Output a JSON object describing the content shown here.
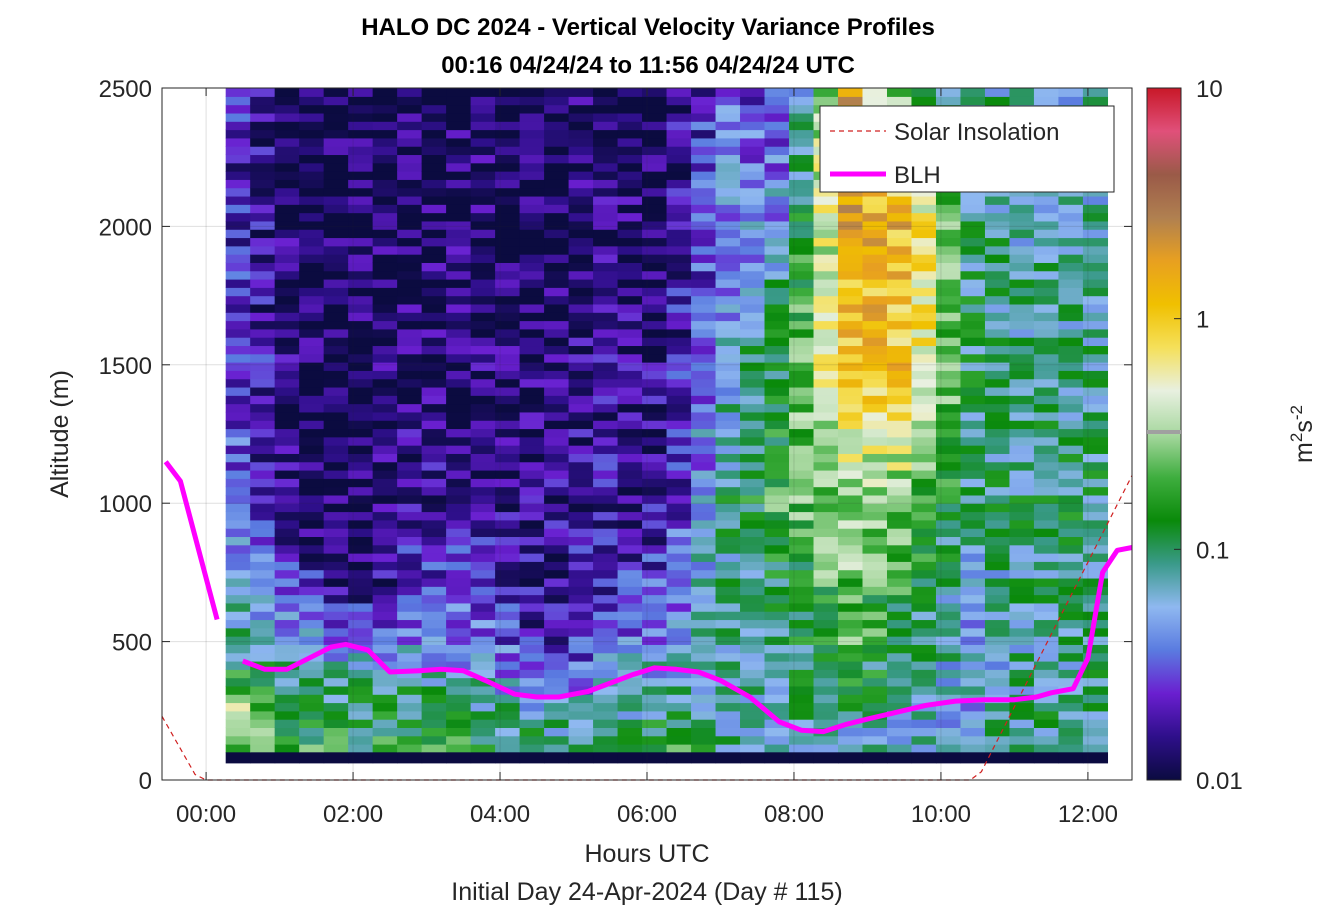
{
  "chart_data": {
    "type": "heatmap",
    "title": "HALO DC 2024 - Vertical Velocity Variance Profiles",
    "subtitle": "00:16 04/24/24 to 11:56 04/24/24  UTC",
    "xlabel": "Hours UTC",
    "xlabel2": "Initial Day 24-Apr-2024 (Day # 115)",
    "ylabel": "Altitude (m)",
    "xlim": [
      -0.6,
      12.6
    ],
    "ylim": [
      0,
      2500
    ],
    "x_ticks": [
      0,
      2,
      4,
      6,
      8,
      10,
      12
    ],
    "x_tick_labels": [
      "00:00",
      "02:00",
      "04:00",
      "06:00",
      "08:00",
      "10:00",
      "12:00"
    ],
    "y_ticks": [
      0,
      500,
      1000,
      1500,
      2000,
      2500
    ],
    "y_tick_labels": [
      "0",
      "500",
      "1000",
      "1500",
      "2000",
      "2500"
    ],
    "grid": true,
    "colorbar": {
      "label": "m²s⁻²",
      "scale": "log",
      "range": [
        0.01,
        10
      ],
      "ticks": [
        0.01,
        0.1,
        1,
        10
      ],
      "tick_labels": [
        "0.01",
        "0.1",
        "1",
        "10"
      ],
      "colors": [
        "#0b0b40",
        "#2e0f8a",
        "#6a1fd0",
        "#5a7be0",
        "#8fb8f0",
        "#3a9a8a",
        "#0a8a0a",
        "#3fae3f",
        "#a8d8a0",
        "#e8f0e0",
        "#f5e05a",
        "#f0c000",
        "#e8a020",
        "#b08050",
        "#9a5a48",
        "#e0507a",
        "#c81828"
      ]
    },
    "heatmap": {
      "time_start": 0.2667,
      "time_end": 11.9333,
      "time_step": 0.3333,
      "alt_bottom": 100,
      "alt_step": 30,
      "log10_variance_by_column": [
        {
          "time": 0.42,
          "profile": [
            [
              0,
              -0.8
            ],
            [
              250,
              -0.4
            ],
            [
              500,
              -1.1
            ],
            [
              1000,
              -1.5
            ],
            [
              1500,
              -1.6
            ],
            [
              2500,
              -1.7
            ]
          ]
        },
        {
          "time": 1.25,
          "profile": [
            [
              0,
              -0.6
            ],
            [
              250,
              -0.9
            ],
            [
              500,
              -1.3
            ],
            [
              900,
              -1.9
            ],
            [
              2500,
              -1.95
            ]
          ]
        },
        {
          "time": 2.08,
          "profile": [
            [
              0,
              -0.8
            ],
            [
              300,
              -1.0
            ],
            [
              500,
              -1.4
            ],
            [
              700,
              -1.9
            ],
            [
              2500,
              -1.95
            ]
          ]
        },
        {
          "time": 2.92,
          "profile": [
            [
              0,
              -0.6
            ],
            [
              300,
              -1.0
            ],
            [
              500,
              -1.4
            ],
            [
              1000,
              -1.8
            ],
            [
              2500,
              -1.95
            ]
          ]
        },
        {
          "time": 3.75,
          "profile": [
            [
              0,
              -0.7
            ],
            [
              300,
              -1.1
            ],
            [
              600,
              -1.5
            ],
            [
              1000,
              -1.85
            ],
            [
              2500,
              -1.9
            ]
          ]
        },
        {
          "time": 4.58,
          "profile": [
            [
              0,
              -0.8
            ],
            [
              300,
              -1.3
            ],
            [
              500,
              -1.8
            ],
            [
              2500,
              -1.95
            ]
          ]
        },
        {
          "time": 5.42,
          "profile": [
            [
              0,
              -0.8
            ],
            [
              300,
              -1.3
            ],
            [
              700,
              -1.7
            ],
            [
              2500,
              -1.9
            ]
          ]
        },
        {
          "time": 6.25,
          "profile": [
            [
              0,
              -0.6
            ],
            [
              300,
              -1.1
            ],
            [
              700,
              -1.5
            ],
            [
              1000,
              -1.8
            ],
            [
              2500,
              -1.9
            ]
          ]
        },
        {
          "time": 7.08,
          "profile": [
            [
              0,
              -1.0
            ],
            [
              500,
              -1.2
            ],
            [
              1000,
              -1.0
            ],
            [
              1500,
              -1.3
            ],
            [
              2500,
              -1.5
            ]
          ]
        },
        {
          "time": 7.92,
          "profile": [
            [
              0,
              -1.2
            ],
            [
              500,
              -1.0
            ],
            [
              1000,
              -0.7
            ],
            [
              1500,
              -0.8
            ],
            [
              2500,
              -1.7
            ]
          ]
        },
        {
          "time": 8.75,
          "profile": [
            [
              0,
              -1.4
            ],
            [
              500,
              -0.7
            ],
            [
              1000,
              -0.5
            ],
            [
              1500,
              0.0
            ],
            [
              2000,
              0.2
            ],
            [
              2500,
              0.3
            ]
          ]
        },
        {
          "time": 9.58,
          "profile": [
            [
              0,
              -1.3
            ],
            [
              500,
              -1.0
            ],
            [
              1000,
              -0.6
            ],
            [
              1500,
              0.0
            ],
            [
              2000,
              0.1
            ],
            [
              2500,
              -0.8
            ]
          ]
        },
        {
          "time": 10.42,
          "profile": [
            [
              0,
              -1.2
            ],
            [
              500,
              -1.3
            ],
            [
              1000,
              -1.1
            ],
            [
              1500,
              -1.0
            ],
            [
              2500,
              -1.1
            ]
          ]
        },
        {
          "time": 11.25,
          "profile": [
            [
              0,
              -1.0
            ],
            [
              500,
              -1.1
            ],
            [
              1000,
              -1.0
            ],
            [
              1500,
              -1.1
            ],
            [
              2500,
              -1.2
            ]
          ]
        }
      ]
    },
    "series": [
      {
        "name": "Solar Insolation",
        "style": "dashed",
        "color": "#d02020",
        "x": [
          -0.6,
          -0.15,
          0.0,
          10.4,
          10.55,
          12.6
        ],
        "y": [
          230,
          20,
          0,
          0,
          30,
          1100
        ]
      },
      {
        "name": "BLH",
        "style": "solid",
        "color": "#ff00ff",
        "segments": [
          {
            "x": [
              -0.55,
              -0.35,
              0.15
            ],
            "y": [
              1150,
              1080,
              580
            ]
          },
          {
            "x": [
              0.5,
              0.8,
              1.1,
              1.4,
              1.7,
              1.9,
              2.2,
              2.5,
              2.9,
              3.2,
              3.5,
              3.8,
              4.2,
              4.5,
              4.8,
              5.2,
              5.5,
              5.8,
              6.1,
              6.4,
              6.7,
              7.0,
              7.4,
              7.8,
              8.1,
              8.4,
              8.7,
              9.0,
              9.4,
              9.8,
              10.2,
              10.6,
              11.0,
              11.3,
              11.5,
              11.8,
              12.0,
              12.2,
              12.4,
              12.6
            ],
            "y": [
              430,
              400,
              400,
              440,
              480,
              490,
              470,
              390,
              395,
              400,
              395,
              360,
              310,
              300,
              300,
              320,
              350,
              380,
              405,
              400,
              390,
              360,
              300,
              210,
              180,
              175,
              200,
              220,
              245,
              270,
              285,
              290,
              290,
              300,
              315,
              330,
              440,
              750,
              830,
              840
            ]
          }
        ]
      }
    ],
    "legend": {
      "placement": "top-right",
      "entries": [
        "Solar Insolation",
        "BLH"
      ]
    }
  }
}
